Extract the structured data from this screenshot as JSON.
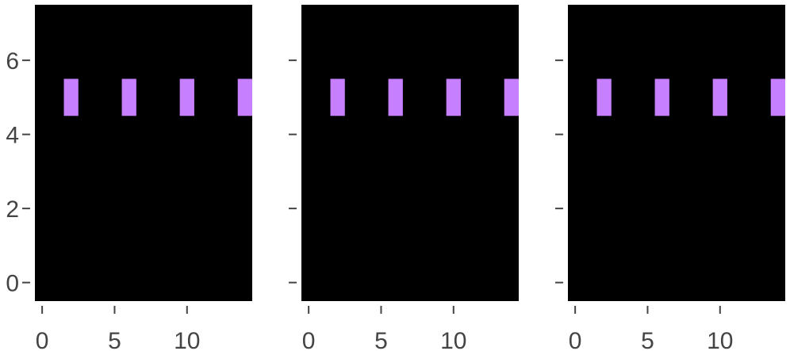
{
  "chart_data": [
    {
      "type": "image",
      "background": "#000000",
      "color": "#c680ff",
      "x": [
        2,
        6,
        10,
        14
      ],
      "y": [
        5,
        5,
        5,
        5
      ],
      "xlim": [
        -0.5,
        14.5
      ],
      "ylim": [
        -0.5,
        7.5
      ],
      "xticks": [
        0,
        5,
        10
      ],
      "yticks": [
        0,
        2,
        4,
        6
      ],
      "show_ytick_labels": true
    },
    {
      "type": "image",
      "background": "#000000",
      "color": "#c680ff",
      "x": [
        2,
        6,
        10,
        14
      ],
      "y": [
        5,
        5,
        5,
        5
      ],
      "xlim": [
        -0.5,
        14.5
      ],
      "ylim": [
        -0.5,
        7.5
      ],
      "xticks": [
        0,
        5,
        10
      ],
      "yticks": [
        0,
        2,
        4,
        6
      ],
      "show_ytick_labels": false
    },
    {
      "type": "image",
      "background": "#000000",
      "color": "#c680ff",
      "x": [
        2,
        6,
        10,
        14
      ],
      "y": [
        5,
        5,
        5,
        5
      ],
      "xlim": [
        -0.5,
        14.5
      ],
      "ylim": [
        -0.5,
        7.5
      ],
      "xticks": [
        0,
        5,
        10
      ],
      "yticks": [
        0,
        2,
        4,
        6
      ],
      "show_ytick_labels": false
    }
  ]
}
